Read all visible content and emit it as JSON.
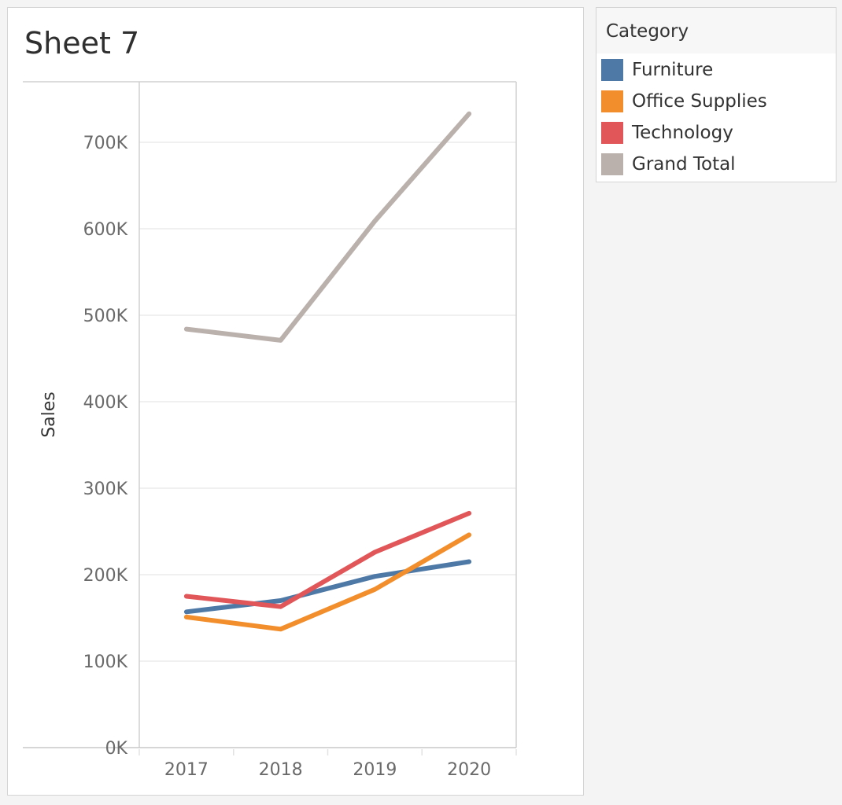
{
  "sheet": {
    "title": "Sheet 7"
  },
  "legend": {
    "title": "Category",
    "items": [
      {
        "label": "Furniture",
        "color": "#4e79a7"
      },
      {
        "label": "Office Supplies",
        "color": "#f28e2b"
      },
      {
        "label": "Technology",
        "color": "#e15759"
      },
      {
        "label": "Grand Total",
        "color": "#bab0ac"
      }
    ]
  },
  "chart_data": {
    "type": "line",
    "title": "Sheet 7",
    "xlabel": "",
    "ylabel": "Sales",
    "x": [
      "2017",
      "2018",
      "2019",
      "2020"
    ],
    "ylim": [
      0,
      770000
    ],
    "yticks": [
      0,
      100000,
      200000,
      300000,
      400000,
      500000,
      600000,
      700000
    ],
    "ytick_labels": [
      "0K",
      "100K",
      "200K",
      "300K",
      "400K",
      "500K",
      "600K",
      "700K"
    ],
    "grid": true,
    "legend_position": "right",
    "series": [
      {
        "name": "Furniture",
        "color": "#4e79a7",
        "values": [
          157000,
          170000,
          198000,
          215000
        ]
      },
      {
        "name": "Office Supplies",
        "color": "#f28e2b",
        "values": [
          151000,
          137000,
          183000,
          246000
        ]
      },
      {
        "name": "Technology",
        "color": "#e15759",
        "values": [
          175000,
          163000,
          226000,
          271000
        ]
      },
      {
        "name": "Grand Total",
        "color": "#bab0ac",
        "values": [
          484000,
          471000,
          609000,
          733000
        ]
      }
    ]
  }
}
